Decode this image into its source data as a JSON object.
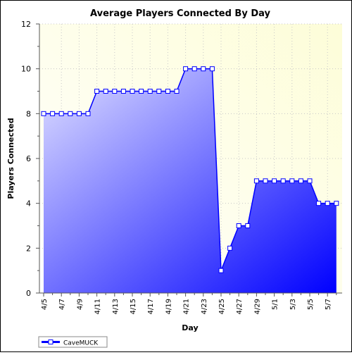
{
  "chart_data": {
    "type": "area",
    "title": "Average Players Connected By Day",
    "xlabel": "Day",
    "ylabel": "Players Connected",
    "ylim": [
      0,
      12
    ],
    "yticks": [
      0,
      2,
      4,
      6,
      8,
      10,
      12
    ],
    "grid": true,
    "legend_position": "bottom-left",
    "categories": [
      "4/5",
      "4/6",
      "4/7",
      "4/8",
      "4/9",
      "4/10",
      "4/11",
      "4/12",
      "4/13",
      "4/14",
      "4/15",
      "4/16",
      "4/17",
      "4/18",
      "4/19",
      "4/20",
      "4/21",
      "4/22",
      "4/23",
      "4/24",
      "4/25",
      "4/26",
      "4/27",
      "4/28",
      "4/29",
      "4/30",
      "5/1",
      "5/2",
      "5/3",
      "5/4",
      "5/5",
      "5/6",
      "5/7",
      "5/8"
    ],
    "tick_labels": [
      "4/5",
      "4/7",
      "4/9",
      "4/11",
      "4/13",
      "4/15",
      "4/17",
      "4/19",
      "4/21",
      "4/23",
      "4/25",
      "4/27",
      "4/29",
      "5/1",
      "5/3",
      "5/5",
      "5/7"
    ],
    "series": [
      {
        "name": "CaveMUCK",
        "color": "#0000ff",
        "values": [
          8,
          8,
          8,
          8,
          8,
          8,
          9,
          9,
          9,
          9,
          9,
          9,
          9,
          9,
          9,
          9,
          10,
          10,
          10,
          10,
          1,
          2,
          3,
          3,
          5,
          5,
          5,
          5,
          5,
          5,
          5,
          4,
          4,
          4
        ]
      }
    ]
  }
}
